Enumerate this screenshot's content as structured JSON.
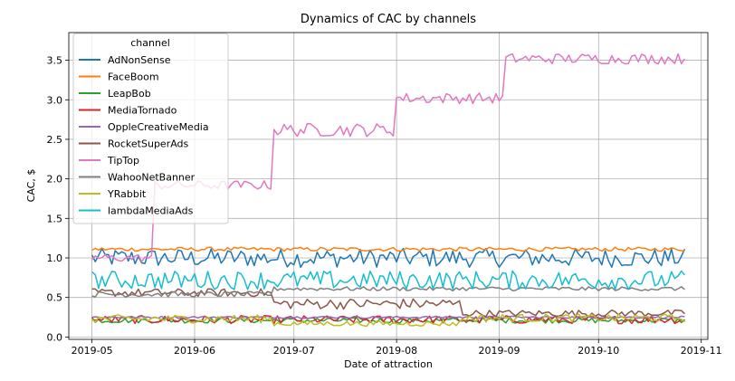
{
  "chart_data": {
    "type": "line",
    "title": "Dynamics of CAC by channels",
    "xlabel": "Date of attraction",
    "ylabel": "CAC, $",
    "xlim": [
      "2019-04-24",
      "2019-11-03"
    ],
    "ylim": [
      -0.03,
      3.85
    ],
    "x_ticks": [
      {
        "date": "2019-05-01",
        "label": "2019-05"
      },
      {
        "date": "2019-06-01",
        "label": "2019-06"
      },
      {
        "date": "2019-07-01",
        "label": "2019-07"
      },
      {
        "date": "2019-08-01",
        "label": "2019-08"
      },
      {
        "date": "2019-09-01",
        "label": "2019-09"
      },
      {
        "date": "2019-10-01",
        "label": "2019-10"
      },
      {
        "date": "2019-11-01",
        "label": "2019-11"
      }
    ],
    "y_ticks": [
      0.0,
      0.5,
      1.0,
      1.5,
      2.0,
      2.5,
      3.0,
      3.5
    ],
    "y_tick_labels": [
      "0.0",
      "0.5",
      "1.0",
      "1.5",
      "2.0",
      "2.5",
      "3.0",
      "3.5"
    ],
    "grid": true,
    "legend": {
      "title": "channel",
      "position": "upper left"
    },
    "x_start": "2019-05-01",
    "x_end": "2019-10-27",
    "series": [
      {
        "name": "AdNonSense",
        "color": "#1f77b4",
        "segments": [
          {
            "from": "2019-05-01",
            "to": "2019-10-27",
            "value": 1.0,
            "noise": 0.07
          }
        ]
      },
      {
        "name": "FaceBoom",
        "color": "#ff7f0e",
        "segments": [
          {
            "from": "2019-05-01",
            "to": "2019-10-27",
            "value": 1.11,
            "noise": 0.015
          }
        ]
      },
      {
        "name": "LeapBob",
        "color": "#2ca02c",
        "segments": [
          {
            "from": "2019-05-01",
            "to": "2019-10-27",
            "value": 0.21,
            "noise": 0.02
          }
        ]
      },
      {
        "name": "MediaTornado",
        "color": "#d62728",
        "segments": [
          {
            "from": "2019-05-01",
            "to": "2019-10-27",
            "value": 0.22,
            "noise": 0.03
          }
        ]
      },
      {
        "name": "OppleCreativeMedia",
        "color": "#9467bd",
        "segments": [
          {
            "from": "2019-05-01",
            "to": "2019-10-27",
            "value": 0.25,
            "noise": 0.008
          }
        ]
      },
      {
        "name": "RocketSuperAds",
        "color": "#8c564b",
        "segments": [
          {
            "from": "2019-05-01",
            "to": "2019-06-24",
            "value": 0.56,
            "noise": 0.03
          },
          {
            "from": "2019-06-25",
            "to": "2019-08-20",
            "value": 0.42,
            "noise": 0.04
          },
          {
            "from": "2019-08-21",
            "to": "2019-10-27",
            "value": 0.3,
            "noise": 0.025
          }
        ]
      },
      {
        "name": "TipTop",
        "color": "#e377c2",
        "segments": [
          {
            "from": "2019-05-01",
            "to": "2019-05-19",
            "value": 1.0,
            "noise": 0.03
          },
          {
            "from": "2019-05-20",
            "to": "2019-06-24",
            "value": 1.92,
            "noise": 0.035
          },
          {
            "from": "2019-06-25",
            "to": "2019-07-31",
            "value": 2.62,
            "noise": 0.05
          },
          {
            "from": "2019-08-01",
            "to": "2019-09-02",
            "value": 3.02,
            "noise": 0.04
          },
          {
            "from": "2019-09-03",
            "to": "2019-10-27",
            "value": 3.52,
            "noise": 0.04
          }
        ]
      },
      {
        "name": "WahooNetBanner",
        "color": "#7f7f7f",
        "segments": [
          {
            "from": "2019-05-01",
            "to": "2019-06-24",
            "value": 0.54,
            "noise": 0.02
          },
          {
            "from": "2019-06-25",
            "to": "2019-10-27",
            "value": 0.61,
            "noise": 0.015
          }
        ]
      },
      {
        "name": "YRabbit",
        "color": "#bcbd22",
        "segments": [
          {
            "from": "2019-05-01",
            "to": "2019-06-24",
            "value": 0.23,
            "noise": 0.03
          },
          {
            "from": "2019-06-25",
            "to": "2019-08-20",
            "value": 0.17,
            "noise": 0.02
          },
          {
            "from": "2019-08-21",
            "to": "2019-10-27",
            "value": 0.24,
            "noise": 0.03
          }
        ]
      },
      {
        "name": "lambdaMediaAds",
        "color": "#17becf",
        "segments": [
          {
            "from": "2019-05-01",
            "to": "2019-10-27",
            "value": 0.72,
            "noise": 0.07
          }
        ]
      }
    ]
  }
}
